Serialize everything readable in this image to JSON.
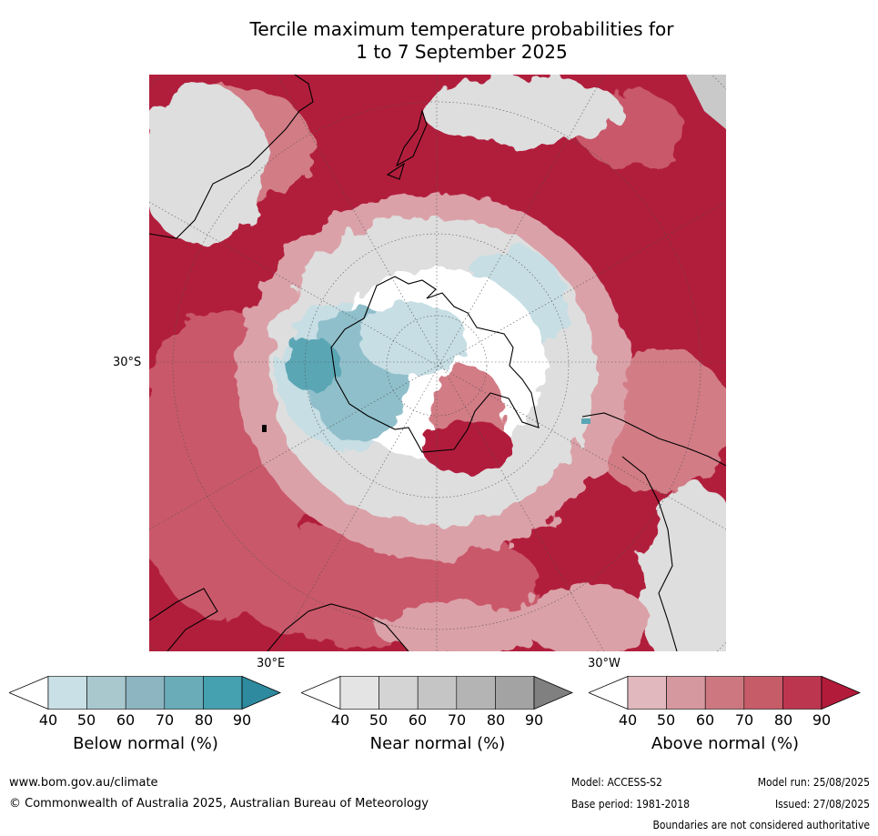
{
  "title": {
    "line1": "Tercile maximum temperature probabilities for",
    "line2": "1 to 7 September 2025"
  },
  "map": {
    "lat_label": "30°S",
    "lon_labels": [
      "30°E",
      "30°W"
    ],
    "colors": {
      "above_90": "#b11e3c",
      "above_80": "#c23c4f",
      "above_70": "#c9596a",
      "above_60": "#d27b86",
      "above_50": "#dba1a8",
      "near_50": "#dedede",
      "near_70": "#c9c9c9",
      "below_50": "#c6dee4",
      "below_70": "#8fbfca",
      "below_80": "#5aa6b5",
      "land_outline": "#000000",
      "grid": "#555555"
    }
  },
  "colorbars": [
    {
      "label": "Below normal (%)",
      "ticks": [
        "40",
        "50",
        "60",
        "70",
        "80",
        "90"
      ],
      "colors": [
        "#ffffff",
        "#c8e0e6",
        "#a8c8ce",
        "#8cb5c1",
        "#6aadb8",
        "#45a0b0",
        "#2e8a9e"
      ]
    },
    {
      "label": "Near normal (%)",
      "ticks": [
        "40",
        "50",
        "60",
        "70",
        "80",
        "90"
      ],
      "colors": [
        "#ffffff",
        "#e4e4e4",
        "#d4d4d4",
        "#c5c5c5",
        "#b4b4b4",
        "#a3a3a3",
        "#808080"
      ]
    },
    {
      "label": "Above normal (%)",
      "ticks": [
        "40",
        "50",
        "60",
        "70",
        "80",
        "90"
      ],
      "colors": [
        "#ffffff",
        "#e0b8bd",
        "#d6989f",
        "#cd7880",
        "#c65c68",
        "#bd3650",
        "#b31b3a"
      ]
    }
  ],
  "footer": {
    "website": "www.bom.gov.au/climate",
    "copyright": "© Commonwealth of Australia 2025, Australian Bureau of Meteorology",
    "model": "Model: ACCESS-S2",
    "model_run": "Model run: 25/08/2025",
    "base_period": "Base period: 1981-2018",
    "issued": "Issued: 27/08/2025",
    "disclaimer": "Boundaries are not considered authoritative"
  }
}
